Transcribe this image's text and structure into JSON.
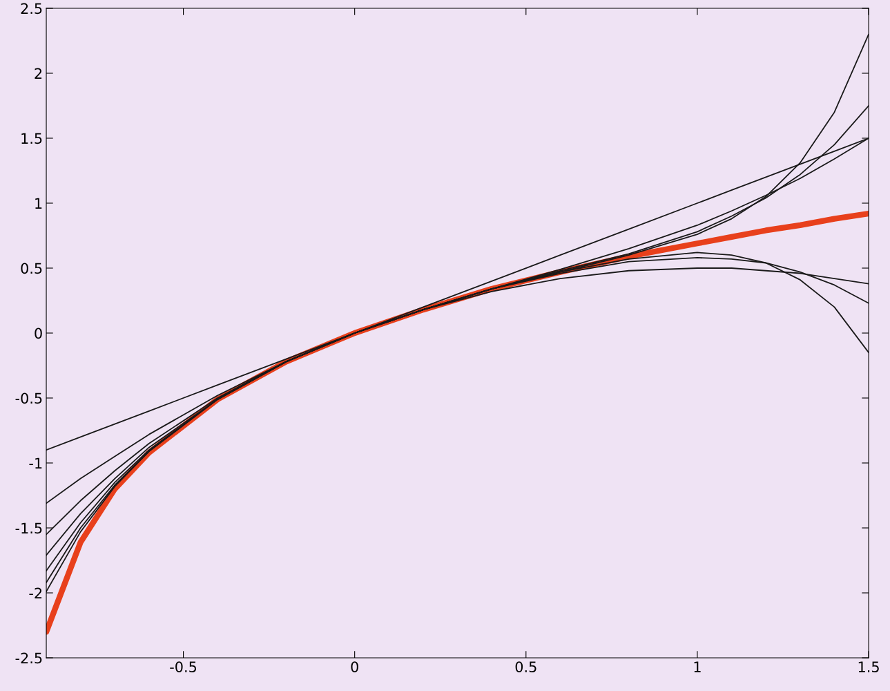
{
  "chart_data": {
    "type": "line",
    "x": [
      -0.9,
      -0.8,
      -0.7,
      -0.6,
      -0.4,
      -0.2,
      0,
      0.2,
      0.4,
      0.6,
      0.8,
      1.0,
      1.1,
      1.2,
      1.3,
      1.4,
      1.5
    ],
    "series": [
      {
        "color": "#1a1a1a",
        "values": [
          -0.9,
          -0.8,
          -0.7,
          -0.6,
          -0.4,
          -0.2,
          0,
          0.2,
          0.4,
          0.6,
          0.8,
          1.0,
          1.1,
          1.2,
          1.3,
          1.4,
          1.5
        ]
      },
      {
        "color": "#1a1a1a",
        "values": [
          -1.31,
          -1.12,
          -0.95,
          -0.78,
          -0.48,
          -0.22,
          0,
          0.18,
          0.32,
          0.42,
          0.48,
          0.5,
          0.5,
          0.48,
          0.46,
          0.42,
          0.38
        ]
      },
      {
        "color": "#1a1a1a",
        "values": [
          -1.55,
          -1.29,
          -1.06,
          -0.85,
          -0.5,
          -0.22,
          0,
          0.18,
          0.34,
          0.49,
          0.65,
          0.83,
          0.94,
          1.06,
          1.19,
          1.34,
          1.5
        ]
      },
      {
        "color": "#1a1a1a",
        "values": [
          -1.71,
          -1.39,
          -1.12,
          -0.88,
          -0.51,
          -0.22,
          0,
          0.18,
          0.34,
          0.46,
          0.55,
          0.58,
          0.57,
          0.54,
          0.47,
          0.37,
          0.23
        ]
      },
      {
        "color": "#1a1a1a",
        "values": [
          -1.83,
          -1.46,
          -1.15,
          -0.9,
          -0.51,
          -0.22,
          0,
          0.18,
          0.34,
          0.48,
          0.61,
          0.78,
          0.9,
          1.04,
          1.22,
          1.45,
          1.75
        ]
      },
      {
        "color": "#1a1a1a",
        "values": [
          -1.92,
          -1.5,
          -1.17,
          -0.91,
          -0.51,
          -0.22,
          0,
          0.18,
          0.34,
          0.47,
          0.57,
          0.62,
          0.6,
          0.54,
          0.41,
          0.2,
          -0.15
        ]
      },
      {
        "color": "#1a1a1a",
        "values": [
          -1.99,
          -1.53,
          -1.18,
          -0.91,
          -0.51,
          -0.22,
          0,
          0.18,
          0.34,
          0.47,
          0.6,
          0.76,
          0.88,
          1.05,
          1.31,
          1.7,
          2.3
        ]
      },
      {
        "color": "#e8401c",
        "values": [
          -2.3,
          -1.61,
          -1.2,
          -0.92,
          -0.51,
          -0.22,
          0,
          0.18,
          0.34,
          0.47,
          0.59,
          0.69,
          0.74,
          0.79,
          0.83,
          0.88,
          0.92
        ]
      }
    ],
    "xlim": [
      -0.9,
      1.5
    ],
    "xticks": [
      -0.5,
      0,
      0.5,
      1,
      1.5
    ],
    "ylim": [
      -2.5,
      2.5
    ],
    "yticks": [
      -2.5,
      -2,
      -1.5,
      -1,
      -0.5,
      0,
      0.5,
      1,
      1.5,
      2,
      2.5
    ],
    "grid": false,
    "legend": false,
    "marker": "none",
    "line_style": "solid"
  }
}
